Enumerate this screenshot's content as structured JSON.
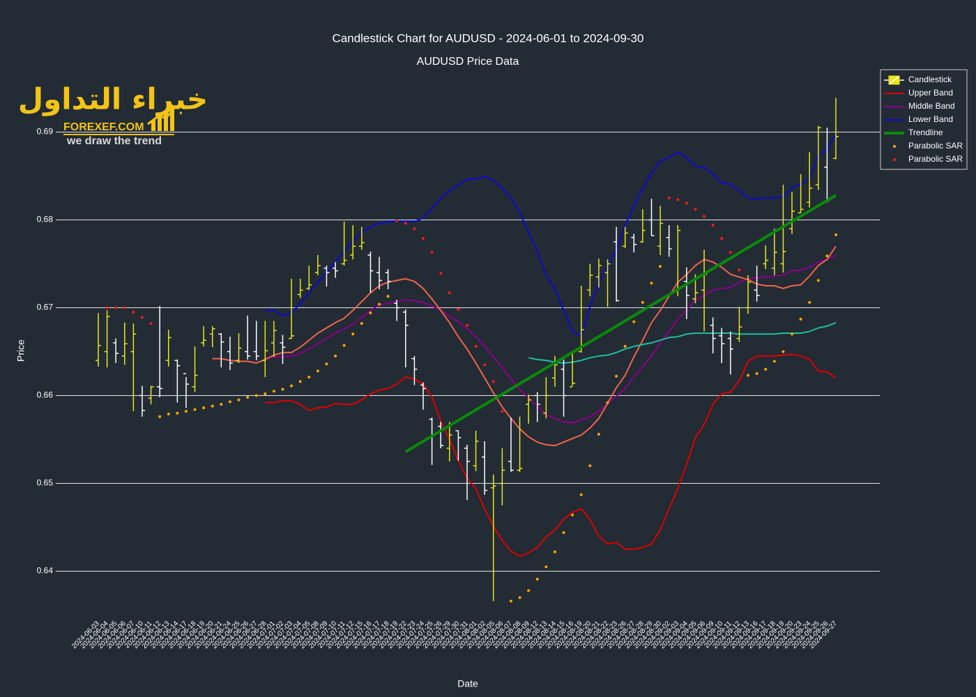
{
  "logo": {
    "arabic": "خبراء التداول",
    "brand": "FOREXEF.COM",
    "tagline": "we draw the trend"
  },
  "chart_data": {
    "type": "candlestick",
    "title": "Candlestick Chart for AUDUSD - 2024-06-01 to 2024-09-30",
    "subtitle": "AUDUSD Price Data",
    "xlabel": "Date",
    "ylabel": "Price",
    "ylim": [
      0.6352,
      0.6971
    ],
    "yticks": [
      0.64,
      0.65,
      0.66,
      0.67,
      0.68,
      0.69
    ],
    "grid": true,
    "legend": "top-right",
    "categories": [
      "2024-06-03",
      "2024-06-04",
      "2024-06-05",
      "2024-06-06",
      "2024-06-07",
      "2024-06-10",
      "2024-06-11",
      "2024-06-12",
      "2024-06-13",
      "2024-06-14",
      "2024-06-17",
      "2024-06-18",
      "2024-06-19",
      "2024-06-20",
      "2024-06-21",
      "2024-06-24",
      "2024-06-25",
      "2024-06-26",
      "2024-06-27",
      "2024-06-28",
      "2024-07-01",
      "2024-07-02",
      "2024-07-03",
      "2024-07-04",
      "2024-07-05",
      "2024-07-08",
      "2024-07-09",
      "2024-07-10",
      "2024-07-11",
      "2024-07-12",
      "2024-07-15",
      "2024-07-16",
      "2024-07-17",
      "2024-07-18",
      "2024-07-19",
      "2024-07-22",
      "2024-07-23",
      "2024-07-24",
      "2024-07-25",
      "2024-07-26",
      "2024-07-29",
      "2024-07-30",
      "2024-07-31",
      "2024-08-01",
      "2024-08-02",
      "2024-08-05",
      "2024-08-06",
      "2024-08-07",
      "2024-08-08",
      "2024-08-09",
      "2024-08-12",
      "2024-08-13",
      "2024-08-14",
      "2024-08-15",
      "2024-08-16",
      "2024-08-19",
      "2024-08-20",
      "2024-08-21",
      "2024-08-22",
      "2024-08-23",
      "2024-08-26",
      "2024-08-27",
      "2024-08-28",
      "2024-08-29",
      "2024-08-30",
      "2024-09-02",
      "2024-09-03",
      "2024-09-04",
      "2024-09-05",
      "2024-09-06",
      "2024-09-09",
      "2024-09-10",
      "2024-09-11",
      "2024-09-12",
      "2024-09-13",
      "2024-09-16",
      "2024-09-17",
      "2024-09-18",
      "2024-09-19",
      "2024-09-20",
      "2024-09-23",
      "2024-09-24",
      "2024-09-25",
      "2024-09-26",
      "2024-09-27"
    ],
    "candles": {
      "name": "Candlestick",
      "increasing_color": "#e8e81c",
      "decreasing_color": "#ffffff",
      "open": [
        0.664,
        0.665,
        0.666,
        0.6645,
        0.665,
        0.66,
        0.6597,
        0.661,
        0.664,
        0.664,
        0.6625,
        0.661,
        0.666,
        0.667,
        0.667,
        0.665,
        0.664,
        0.665,
        0.665,
        0.664,
        0.666,
        0.666,
        0.6665,
        0.6715,
        0.6722,
        0.674,
        0.6745,
        0.6745,
        0.675,
        0.676,
        0.677,
        0.676,
        0.674,
        0.674,
        0.6705,
        0.6695,
        0.6642,
        0.6612,
        0.6573,
        0.6565,
        0.654,
        0.656,
        0.654,
        0.652,
        0.653,
        0.6495,
        0.65,
        0.6525,
        0.6515,
        0.659,
        0.66,
        0.658,
        0.662,
        0.663,
        0.661,
        0.665,
        0.672,
        0.6735,
        0.674,
        0.6775,
        0.677,
        0.678,
        0.6775,
        0.68,
        0.677,
        0.678,
        0.672,
        0.673,
        0.671,
        0.672,
        0.668,
        0.6668,
        0.6665,
        0.6665,
        0.67,
        0.672,
        0.675,
        0.6745,
        0.675,
        0.679,
        0.6808,
        0.682,
        0.684,
        0.686,
        0.687
      ],
      "high": [
        0.6694,
        0.6697,
        0.6665,
        0.6683,
        0.6682,
        0.6611,
        0.6611,
        0.6702,
        0.6675,
        0.6641,
        0.6621,
        0.6656,
        0.6679,
        0.6679,
        0.6671,
        0.6667,
        0.6671,
        0.6691,
        0.6685,
        0.6685,
        0.6685,
        0.6669,
        0.6733,
        0.6733,
        0.6748,
        0.676,
        0.6748,
        0.6752,
        0.6798,
        0.6794,
        0.6792,
        0.6764,
        0.6758,
        0.6744,
        0.6709,
        0.6698,
        0.6645,
        0.6615,
        0.6575,
        0.657,
        0.657,
        0.656,
        0.6544,
        0.656,
        0.6548,
        0.651,
        0.654,
        0.6575,
        0.6576,
        0.6601,
        0.6604,
        0.6621,
        0.6645,
        0.6641,
        0.6649,
        0.6725,
        0.675,
        0.6756,
        0.6755,
        0.6792,
        0.6792,
        0.6784,
        0.6812,
        0.6824,
        0.6816,
        0.6794,
        0.6794,
        0.6746,
        0.6738,
        0.6766,
        0.6689,
        0.6677,
        0.6673,
        0.6701,
        0.6737,
        0.6748,
        0.6771,
        0.679,
        0.684,
        0.6832,
        0.6852,
        0.6877,
        0.6907,
        0.6905,
        0.6939
      ],
      "low": [
        0.6633,
        0.6632,
        0.6637,
        0.6635,
        0.6582,
        0.6576,
        0.659,
        0.6598,
        0.6633,
        0.6592,
        0.6586,
        0.6604,
        0.6656,
        0.6655,
        0.6632,
        0.6629,
        0.6637,
        0.6641,
        0.664,
        0.6621,
        0.6644,
        0.6636,
        0.6665,
        0.6711,
        0.672,
        0.6737,
        0.6724,
        0.6734,
        0.6748,
        0.6755,
        0.6766,
        0.6717,
        0.6721,
        0.6721,
        0.6685,
        0.6632,
        0.6612,
        0.6584,
        0.6521,
        0.654,
        0.6525,
        0.6526,
        0.6481,
        0.6514,
        0.6487,
        0.6366,
        0.6475,
        0.6513,
        0.6513,
        0.6568,
        0.657,
        0.6574,
        0.661,
        0.6576,
        0.6611,
        0.6649,
        0.6713,
        0.6723,
        0.6701,
        0.6707,
        0.6768,
        0.6763,
        0.6774,
        0.6782,
        0.676,
        0.6758,
        0.6713,
        0.6687,
        0.6705,
        0.6673,
        0.6648,
        0.6637,
        0.6624,
        0.6661,
        0.6693,
        0.6707,
        0.6744,
        0.6737,
        0.674,
        0.6784,
        0.6808,
        0.6814,
        0.6834,
        0.682,
        0.6869
      ],
      "close": [
        0.6657,
        0.669,
        0.6648,
        0.6659,
        0.667,
        0.6583,
        0.661,
        0.6608,
        0.6666,
        0.6634,
        0.6613,
        0.6623,
        0.6663,
        0.6676,
        0.6661,
        0.6637,
        0.6654,
        0.6645,
        0.6645,
        0.6651,
        0.6674,
        0.6655,
        0.6668,
        0.672,
        0.6726,
        0.6748,
        0.674,
        0.6742,
        0.6754,
        0.677,
        0.6774,
        0.6742,
        0.6731,
        0.673,
        0.67,
        0.668,
        0.663,
        0.6608,
        0.6555,
        0.6543,
        0.6555,
        0.6552,
        0.6525,
        0.6548,
        0.6492,
        0.6497,
        0.6515,
        0.6515,
        0.6517,
        0.6595,
        0.659,
        0.66,
        0.6635,
        0.66,
        0.6614,
        0.6675,
        0.6737,
        0.6748,
        0.675,
        0.6708,
        0.6785,
        0.6772,
        0.6788,
        0.6782,
        0.6796,
        0.6767,
        0.6788,
        0.6714,
        0.6717,
        0.6738,
        0.6665,
        0.6659,
        0.6653,
        0.6678,
        0.6729,
        0.6714,
        0.6754,
        0.6763,
        0.6764,
        0.681,
        0.6812,
        0.6836,
        0.6905,
        0.6822,
        0.6895
      ]
    },
    "series": [
      {
        "name": "Upper Band",
        "color": "#e00000",
        "values": [
          null,
          null,
          null,
          null,
          null,
          null,
          null,
          null,
          null,
          null,
          null,
          null,
          null,
          null,
          null,
          null,
          null,
          null,
          null,
          0.6592,
          0.6592,
          0.6594,
          0.6594,
          0.659,
          0.6583,
          0.6586,
          0.6587,
          0.6591,
          0.659,
          0.659,
          0.6595,
          0.6602,
          0.6606,
          0.6608,
          0.6613,
          0.6621,
          0.6619,
          0.6613,
          0.6598,
          0.6571,
          0.655,
          0.6526,
          0.6506,
          0.6494,
          0.6471,
          0.6451,
          0.6435,
          0.6423,
          0.6417,
          0.6421,
          0.6427,
          0.6439,
          0.6447,
          0.6459,
          0.6467,
          0.6471,
          0.6459,
          0.644,
          0.6431,
          0.6433,
          0.6425,
          0.6425,
          0.6427,
          0.6431,
          0.6447,
          0.6471,
          0.6494,
          0.6522,
          0.6552,
          0.6567,
          0.659,
          0.6602,
          0.6604,
          0.6617,
          0.6639,
          0.6645,
          0.6645,
          0.6645,
          0.6646,
          0.6647,
          0.6645,
          0.6641,
          0.6628,
          0.6627,
          0.662
        ]
      },
      {
        "name": "Middle Band",
        "color": "#8b008b",
        "values": [
          null,
          null,
          null,
          null,
          null,
          null,
          null,
          null,
          null,
          null,
          null,
          null,
          null,
          null,
          null,
          null,
          null,
          null,
          null,
          0.6643,
          0.6644,
          0.6644,
          0.6645,
          0.6648,
          0.6653,
          0.6659,
          0.6665,
          0.6671,
          0.6676,
          0.6681,
          0.6689,
          0.6697,
          0.6703,
          0.6705,
          0.6707,
          0.6709,
          0.6708,
          0.6706,
          0.6702,
          0.6697,
          0.669,
          0.6684,
          0.6676,
          0.6667,
          0.6656,
          0.6644,
          0.6632,
          0.6619,
          0.6607,
          0.6598,
          0.6588,
          0.6578,
          0.6574,
          0.657,
          0.6569,
          0.6572,
          0.6576,
          0.6582,
          0.6591,
          0.6599,
          0.6608,
          0.6621,
          0.6633,
          0.6645,
          0.666,
          0.6673,
          0.6687,
          0.6697,
          0.6709,
          0.6714,
          0.672,
          0.6722,
          0.6723,
          0.6729,
          0.6733,
          0.6734,
          0.6735,
          0.6736,
          0.6737,
          0.6742,
          0.6743,
          0.6746,
          0.6752,
          0.6755,
          0.676
        ]
      },
      {
        "name": "Lower Band",
        "color": "#0a0ad0",
        "values": [
          null,
          null,
          null,
          null,
          null,
          null,
          null,
          null,
          null,
          null,
          null,
          null,
          null,
          null,
          null,
          null,
          null,
          null,
          null,
          0.6697,
          0.6697,
          0.6691,
          0.6694,
          0.6705,
          0.6717,
          0.6729,
          0.674,
          0.6752,
          0.6764,
          0.6776,
          0.6786,
          0.6792,
          0.6796,
          0.6798,
          0.6799,
          0.6798,
          0.6798,
          0.6802,
          0.6813,
          0.6825,
          0.6833,
          0.684,
          0.6846,
          0.6847,
          0.6849,
          0.6845,
          0.6836,
          0.6825,
          0.6808,
          0.6786,
          0.6764,
          0.6737,
          0.6721,
          0.6697,
          0.6673,
          0.6667,
          0.6701,
          0.6729,
          0.6748,
          0.6766,
          0.6794,
          0.6816,
          0.6836,
          0.6853,
          0.6867,
          0.6871,
          0.6877,
          0.6871,
          0.6861,
          0.686,
          0.6852,
          0.6842,
          0.6841,
          0.6833,
          0.6825,
          0.6824,
          0.6825,
          0.6825,
          0.6826,
          0.6837,
          0.684,
          0.6848,
          0.6874,
          0.688,
          0.6898
        ]
      }
    ],
    "overlays": [
      {
        "color": "#f0654a",
        "values": [
          null,
          null,
          null,
          null,
          null,
          null,
          null,
          null,
          null,
          null,
          null,
          null,
          null,
          0.6642,
          0.6642,
          0.664,
          0.6639,
          0.6639,
          0.6637,
          0.6641,
          0.6646,
          0.6649,
          0.6649,
          0.6655,
          0.6663,
          0.6671,
          0.6677,
          0.6683,
          0.6688,
          0.6697,
          0.6707,
          0.6717,
          0.6725,
          0.6729,
          0.6731,
          0.6733,
          0.673,
          0.6722,
          0.671,
          0.6697,
          0.6683,
          0.6667,
          0.6653,
          0.6637,
          0.662,
          0.6603,
          0.6587,
          0.6574,
          0.6562,
          0.6553,
          0.6547,
          0.6544,
          0.6543,
          0.6547,
          0.6551,
          0.6555,
          0.6563,
          0.6574,
          0.6591,
          0.6609,
          0.6623,
          0.6644,
          0.6663,
          0.6683,
          0.6697,
          0.6713,
          0.6729,
          0.6738,
          0.6748,
          0.6755,
          0.6752,
          0.6746,
          0.6738,
          0.6735,
          0.6732,
          0.6727,
          0.6725,
          0.6725,
          0.6722,
          0.6725,
          0.6726,
          0.6736,
          0.6748,
          0.6755,
          0.677
        ]
      },
      {
        "color": "#1fbf9f",
        "values": [
          null,
          null,
          null,
          null,
          null,
          null,
          null,
          null,
          null,
          null,
          null,
          null,
          null,
          null,
          null,
          null,
          null,
          null,
          null,
          null,
          null,
          null,
          null,
          null,
          null,
          null,
          null,
          null,
          null,
          null,
          null,
          null,
          null,
          null,
          null,
          null,
          null,
          null,
          null,
          null,
          null,
          null,
          null,
          null,
          null,
          null,
          null,
          null,
          null,
          0.6643,
          0.6641,
          0.664,
          0.6638,
          0.6637,
          0.6638,
          0.664,
          0.6643,
          0.6645,
          0.6646,
          0.6649,
          0.6653,
          0.6656,
          0.6658,
          0.666,
          0.6663,
          0.6666,
          0.6667,
          0.667,
          0.6671,
          0.6671,
          0.6671,
          0.6671,
          0.6671,
          0.667,
          0.667,
          0.667,
          0.667,
          0.667,
          0.6671,
          0.6671,
          0.6671,
          0.6673,
          0.6677,
          0.6679,
          0.6683
        ]
      }
    ],
    "trendline": {
      "name": "Trendline",
      "color": "#0a8a0a",
      "x": [
        "2024-07-22",
        "2024-09-27"
      ],
      "values": [
        0.6536,
        0.6828
      ]
    },
    "sar": [
      {
        "name": "Parabolic SAR",
        "color": "#ffa500",
        "values": [
          null,
          null,
          null,
          null,
          null,
          null,
          null,
          0.6576,
          0.6579,
          0.658,
          0.6582,
          0.6584,
          0.6586,
          0.6588,
          0.659,
          0.6593,
          0.6595,
          0.6598,
          0.66,
          0.6602,
          0.6605,
          0.6607,
          0.6611,
          0.6616,
          0.6621,
          0.6628,
          0.6636,
          0.6645,
          0.6657,
          0.667,
          0.6682,
          0.6694,
          0.6704,
          0.6713,
          null,
          null,
          null,
          null,
          null,
          null,
          null,
          null,
          null,
          null,
          null,
          null,
          null,
          0.6366,
          0.637,
          0.6378,
          0.6391,
          0.6405,
          0.6422,
          0.6444,
          0.6464,
          0.6487,
          0.652,
          0.6556,
          0.6592,
          0.6622,
          0.6656,
          0.6684,
          0.6706,
          0.6728,
          0.6747,
          null,
          null,
          null,
          null,
          null,
          null,
          null,
          null,
          null,
          0.6623,
          0.6625,
          0.663,
          0.6639,
          0.665,
          0.667,
          0.6687,
          0.6706,
          0.6731,
          0.6759,
          0.6783
        ]
      },
      {
        "name": "Parabolic SAR",
        "color": "#ff1a1a",
        "values": [
          null,
          0.67,
          0.67,
          0.67,
          0.6695,
          0.6689,
          0.6682,
          null,
          null,
          null,
          null,
          null,
          null,
          null,
          null,
          null,
          null,
          null,
          null,
          null,
          null,
          null,
          null,
          null,
          null,
          null,
          null,
          null,
          null,
          null,
          null,
          null,
          null,
          null,
          0.6799,
          0.6796,
          0.679,
          0.6779,
          0.6763,
          0.6739,
          0.6717,
          0.6698,
          0.668,
          0.6656,
          0.6635,
          0.6616,
          0.6582,
          null,
          null,
          null,
          null,
          null,
          null,
          null,
          null,
          null,
          null,
          null,
          null,
          null,
          null,
          null,
          null,
          null,
          null,
          0.6825,
          0.6823,
          0.6819,
          0.6812,
          0.6804,
          0.6794,
          0.6779,
          0.6763,
          0.6743,
          null,
          null,
          null,
          null,
          null,
          null,
          null,
          null,
          null,
          null,
          null
        ]
      }
    ]
  }
}
